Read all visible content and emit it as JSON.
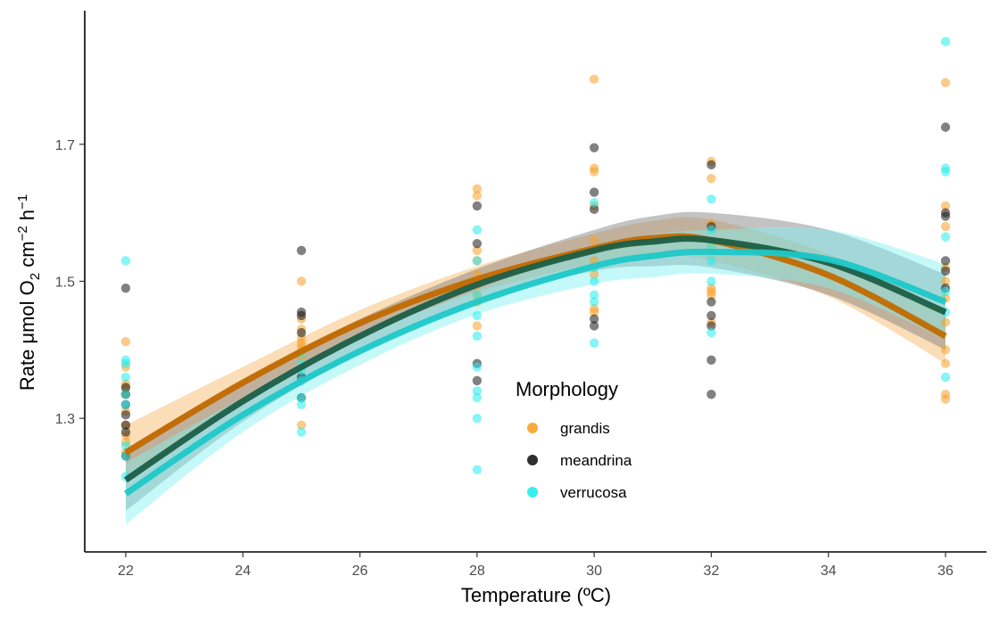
{
  "chart_data": {
    "type": "scatter",
    "title": "",
    "xlabel": "Temperature (ºC)",
    "ylabel_parts": [
      "Rate μmol O",
      "2",
      " cm",
      "−2",
      " h",
      "−1"
    ],
    "xlim": [
      21.3,
      36.7
    ],
    "ylim": [
      1.105,
      1.895
    ],
    "x_ticks": [
      22,
      24,
      26,
      28,
      30,
      32,
      34,
      36
    ],
    "y_ticks": [
      1.3,
      1.5,
      1.7
    ],
    "y_tick_labels": [
      "1.3",
      "1.5",
      "1.7"
    ],
    "grid": false,
    "legend": {
      "title": "Morphology",
      "placement": "center-right"
    },
    "series": [
      {
        "name": "grandis",
        "point_color": "#f7a128",
        "line_color": "#c26a00",
        "band_color": "#f7b561",
        "points": [
          [
            22,
            1.412
          ],
          [
            22,
            1.375
          ],
          [
            22,
            1.35
          ],
          [
            22,
            1.345
          ],
          [
            22,
            1.335
          ],
          [
            22,
            1.31
          ],
          [
            22,
            1.29
          ],
          [
            22,
            1.275
          ],
          [
            22,
            1.265
          ],
          [
            22,
            1.25
          ],
          [
            25,
            1.5
          ],
          [
            25,
            1.445
          ],
          [
            25,
            1.43
          ],
          [
            25,
            1.418
          ],
          [
            25,
            1.41
          ],
          [
            25,
            1.405
          ],
          [
            25,
            1.398
          ],
          [
            25,
            1.39
          ],
          [
            25,
            1.29
          ],
          [
            28,
            1.635
          ],
          [
            28,
            1.625
          ],
          [
            28,
            1.545
          ],
          [
            28,
            1.53
          ],
          [
            28,
            1.51
          ],
          [
            28,
            1.495
          ],
          [
            28,
            1.48
          ],
          [
            28,
            1.47
          ],
          [
            28,
            1.435
          ],
          [
            30,
            1.795
          ],
          [
            30,
            1.665
          ],
          [
            30,
            1.66
          ],
          [
            30,
            1.61
          ],
          [
            30,
            1.56
          ],
          [
            30,
            1.53
          ],
          [
            30,
            1.51
          ],
          [
            30,
            1.46
          ],
          [
            30,
            1.455
          ],
          [
            32,
            1.675
          ],
          [
            32,
            1.65
          ],
          [
            32,
            1.585
          ],
          [
            32,
            1.55
          ],
          [
            32,
            1.49
          ],
          [
            32,
            1.485
          ],
          [
            32,
            1.48
          ],
          [
            32,
            1.44
          ],
          [
            36,
            1.79
          ],
          [
            36,
            1.61
          ],
          [
            36,
            1.58
          ],
          [
            36,
            1.52
          ],
          [
            36,
            1.5
          ],
          [
            36,
            1.475
          ],
          [
            36,
            1.44
          ],
          [
            36,
            1.4
          ],
          [
            36,
            1.38
          ],
          [
            36,
            1.335
          ],
          [
            36,
            1.328
          ]
        ],
        "fit": [
          [
            22,
            1.25
          ],
          [
            24,
            1.352
          ],
          [
            26,
            1.439
          ],
          [
            28,
            1.503
          ],
          [
            30,
            1.548
          ],
          [
            31,
            1.563
          ],
          [
            32,
            1.56
          ],
          [
            34,
            1.509
          ],
          [
            36,
            1.42
          ]
        ],
        "ci_upper": [
          [
            22,
            1.29
          ],
          [
            24,
            1.375
          ],
          [
            26,
            1.458
          ],
          [
            28,
            1.522
          ],
          [
            30,
            1.57
          ],
          [
            31,
            1.588
          ],
          [
            32,
            1.59
          ],
          [
            34,
            1.54
          ],
          [
            36,
            1.46
          ]
        ],
        "ci_lower": [
          [
            22,
            1.21
          ],
          [
            24,
            1.33
          ],
          [
            26,
            1.42
          ],
          [
            28,
            1.484
          ],
          [
            30,
            1.526
          ],
          [
            31,
            1.538
          ],
          [
            32,
            1.53
          ],
          [
            34,
            1.478
          ],
          [
            36,
            1.38
          ]
        ]
      },
      {
        "name": "meandrina",
        "point_color": "#1a1a1a",
        "line_color": "#1b5e46",
        "band_color": "#7a7a7a",
        "points": [
          [
            22,
            1.49
          ],
          [
            22,
            1.345
          ],
          [
            22,
            1.335
          ],
          [
            22,
            1.32
          ],
          [
            22,
            1.305
          ],
          [
            22,
            1.29
          ],
          [
            22,
            1.28
          ],
          [
            22,
            1.245
          ],
          [
            25,
            1.545
          ],
          [
            25,
            1.455
          ],
          [
            25,
            1.45
          ],
          [
            25,
            1.425
          ],
          [
            25,
            1.36
          ],
          [
            25,
            1.33
          ],
          [
            28,
            1.61
          ],
          [
            28,
            1.555
          ],
          [
            28,
            1.38
          ],
          [
            28,
            1.355
          ],
          [
            30,
            1.695
          ],
          [
            30,
            1.63
          ],
          [
            30,
            1.605
          ],
          [
            30,
            1.445
          ],
          [
            30,
            1.435
          ],
          [
            32,
            1.67
          ],
          [
            32,
            1.58
          ],
          [
            32,
            1.47
          ],
          [
            32,
            1.45
          ],
          [
            32,
            1.435
          ],
          [
            32,
            1.385
          ],
          [
            32,
            1.335
          ],
          [
            36,
            1.725
          ],
          [
            36,
            1.6
          ],
          [
            36,
            1.595
          ],
          [
            36,
            1.53
          ],
          [
            36,
            1.515
          ],
          [
            36,
            1.49
          ]
        ],
        "fit": [
          [
            22,
            1.21
          ],
          [
            24,
            1.325
          ],
          [
            26,
            1.42
          ],
          [
            28,
            1.495
          ],
          [
            30,
            1.545
          ],
          [
            31,
            1.558
          ],
          [
            32,
            1.56
          ],
          [
            34,
            1.527
          ],
          [
            36,
            1.455
          ]
        ],
        "ci_upper": [
          [
            22,
            1.255
          ],
          [
            24,
            1.355
          ],
          [
            26,
            1.445
          ],
          [
            28,
            1.518
          ],
          [
            30,
            1.575
          ],
          [
            31,
            1.595
          ],
          [
            32,
            1.6
          ],
          [
            34,
            1.575
          ],
          [
            36,
            1.51
          ]
        ],
        "ci_lower": [
          [
            22,
            1.165
          ],
          [
            24,
            1.295
          ],
          [
            26,
            1.395
          ],
          [
            28,
            1.472
          ],
          [
            30,
            1.515
          ],
          [
            31,
            1.522
          ],
          [
            32,
            1.52
          ],
          [
            34,
            1.48
          ],
          [
            36,
            1.4
          ]
        ]
      },
      {
        "name": "verrucosa",
        "point_color": "#22ecec",
        "line_color": "#1ec8c8",
        "band_color": "#7ff2f2",
        "points": [
          [
            22,
            1.53
          ],
          [
            22,
            1.385
          ],
          [
            22,
            1.38
          ],
          [
            22,
            1.36
          ],
          [
            22,
            1.335
          ],
          [
            22,
            1.32
          ],
          [
            22,
            1.26
          ],
          [
            22,
            1.245
          ],
          [
            22,
            1.215
          ],
          [
            25,
            1.395
          ],
          [
            25,
            1.38
          ],
          [
            25,
            1.37
          ],
          [
            25,
            1.355
          ],
          [
            25,
            1.33
          ],
          [
            25,
            1.32
          ],
          [
            25,
            1.28
          ],
          [
            28,
            1.575
          ],
          [
            28,
            1.53
          ],
          [
            28,
            1.48
          ],
          [
            28,
            1.45
          ],
          [
            28,
            1.42
          ],
          [
            28,
            1.375
          ],
          [
            28,
            1.34
          ],
          [
            28,
            1.33
          ],
          [
            28,
            1.3
          ],
          [
            28,
            1.225
          ],
          [
            30,
            1.615
          ],
          [
            30,
            1.52
          ],
          [
            30,
            1.5
          ],
          [
            30,
            1.48
          ],
          [
            30,
            1.47
          ],
          [
            30,
            1.41
          ],
          [
            32,
            1.62
          ],
          [
            32,
            1.575
          ],
          [
            32,
            1.55
          ],
          [
            32,
            1.53
          ],
          [
            32,
            1.5
          ],
          [
            32,
            1.425
          ],
          [
            36,
            1.85
          ],
          [
            36,
            1.665
          ],
          [
            36,
            1.66
          ],
          [
            36,
            1.565
          ],
          [
            36,
            1.485
          ],
          [
            36,
            1.455
          ],
          [
            36,
            1.36
          ]
        ],
        "fit": [
          [
            22,
            1.19
          ],
          [
            24,
            1.305
          ],
          [
            26,
            1.398
          ],
          [
            28,
            1.47
          ],
          [
            30,
            1.522
          ],
          [
            31,
            1.537
          ],
          [
            32,
            1.543
          ],
          [
            34,
            1.532
          ],
          [
            36,
            1.47
          ]
        ],
        "ci_upper": [
          [
            22,
            1.235
          ],
          [
            24,
            1.33
          ],
          [
            26,
            1.418
          ],
          [
            28,
            1.488
          ],
          [
            30,
            1.548
          ],
          [
            31,
            1.568
          ],
          [
            32,
            1.575
          ],
          [
            34,
            1.575
          ],
          [
            36,
            1.525
          ]
        ],
        "ci_lower": [
          [
            22,
            1.145
          ],
          [
            24,
            1.28
          ],
          [
            26,
            1.378
          ],
          [
            28,
            1.452
          ],
          [
            30,
            1.496
          ],
          [
            31,
            1.506
          ],
          [
            32,
            1.511
          ],
          [
            34,
            1.49
          ],
          [
            36,
            1.415
          ]
        ]
      }
    ]
  }
}
